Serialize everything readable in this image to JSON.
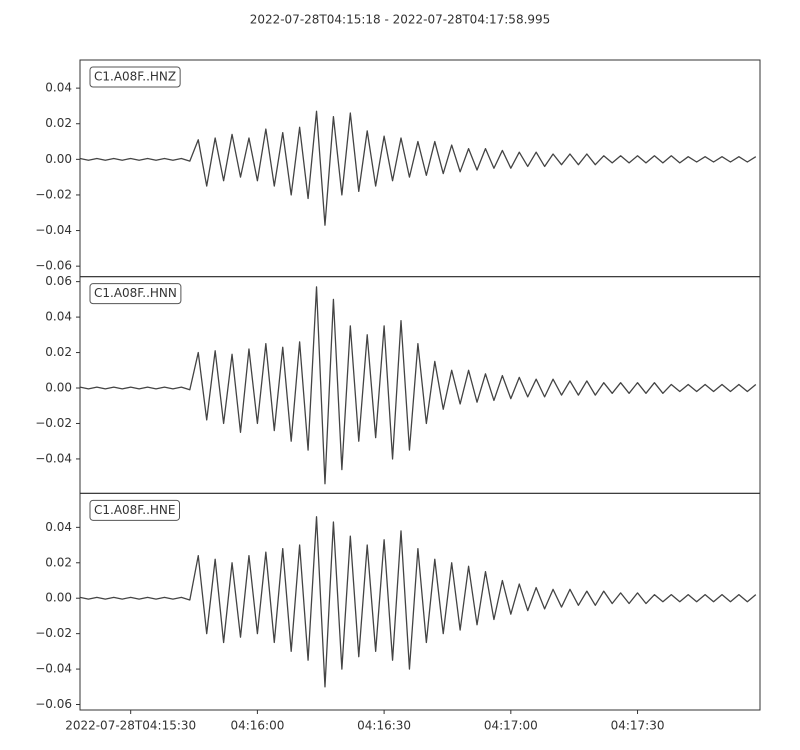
{
  "chart_data": [
    {
      "type": "line",
      "title": "2022-07-28T04:15:18  -  2022-07-28T04:17:58.995",
      "legend": "upper left",
      "x": [
        0,
        2,
        4,
        6,
        8,
        10,
        12,
        14,
        16,
        18,
        20,
        22,
        24,
        26,
        28,
        30,
        32,
        34,
        36,
        38,
        40,
        42,
        44,
        46,
        48,
        50,
        52,
        54,
        56,
        58,
        60,
        62,
        64,
        66,
        68,
        70,
        72,
        74,
        76,
        78,
        80,
        82,
        84,
        86,
        88,
        90,
        92,
        94,
        96,
        98,
        100,
        102,
        104,
        106,
        108,
        110,
        112,
        114,
        116,
        118,
        120,
        122,
        124,
        126,
        128,
        130,
        132,
        134,
        136,
        138,
        140,
        142,
        144,
        146,
        148,
        150,
        152,
        154,
        156,
        158,
        160
      ],
      "xlim": [
        0,
        160.995
      ],
      "ylim": [
        -0.0659,
        0.0558
      ],
      "yticks": [
        {
          "value": -0.06,
          "label": "−0.06"
        },
        {
          "value": -0.04,
          "label": "−0.04"
        },
        {
          "value": -0.02,
          "label": "−0.02"
        },
        {
          "value": 0,
          "label": "0.00"
        },
        0.02,
        0.04
      ],
      "series": [
        {
          "name": "C1.A08F..HNZ",
          "color": "#444444",
          "values": [
            0.0005,
            -0.0005,
            0.0005,
            -0.0005,
            0.0005,
            -0.0005,
            0.0005,
            -0.0005,
            0.0005,
            -0.0005,
            0.0005,
            -0.0005,
            0.0005,
            -0.001,
            0.011,
            -0.015,
            0.012,
            -0.012,
            0.014,
            -0.01,
            0.012,
            -0.012,
            0.017,
            -0.015,
            0.015,
            -0.02,
            0.018,
            -0.022,
            0.027,
            -0.037,
            0.024,
            -0.02,
            0.026,
            -0.018,
            0.016,
            -0.015,
            0.013,
            -0.012,
            0.012,
            -0.01,
            0.01,
            -0.009,
            0.01,
            -0.008,
            0.008,
            -0.007,
            0.006,
            -0.006,
            0.006,
            -0.005,
            0.005,
            -0.005,
            0.004,
            -0.004,
            0.004,
            -0.004,
            0.003,
            -0.003,
            0.003,
            -0.003,
            0.003,
            -0.003,
            0.002,
            -0.002,
            0.002,
            -0.002,
            0.002,
            -0.002,
            0.002,
            -0.002,
            0.002,
            -0.002,
            0.0015,
            -0.0015,
            0.0015,
            -0.0015,
            0.0015,
            -0.0015,
            0.0015,
            -0.0015,
            0.0015
          ]
        }
      ]
    },
    {
      "type": "line",
      "legend": "upper left",
      "x": [
        0,
        2,
        4,
        6,
        8,
        10,
        12,
        14,
        16,
        18,
        20,
        22,
        24,
        26,
        28,
        30,
        32,
        34,
        36,
        38,
        40,
        42,
        44,
        46,
        48,
        50,
        52,
        54,
        56,
        58,
        60,
        62,
        64,
        66,
        68,
        70,
        72,
        74,
        76,
        78,
        80,
        82,
        84,
        86,
        88,
        90,
        92,
        94,
        96,
        98,
        100,
        102,
        104,
        106,
        108,
        110,
        112,
        114,
        116,
        118,
        120,
        122,
        124,
        126,
        128,
        130,
        132,
        134,
        136,
        138,
        140,
        142,
        144,
        146,
        148,
        150,
        152,
        154,
        156,
        158,
        160
      ],
      "xlim": [
        0,
        160.995
      ],
      "ylim": [
        -0.0594,
        0.0628
      ],
      "yticks": [
        {
          "value": -0.04,
          "label": "−0.04"
        },
        {
          "value": -0.02,
          "label": "−0.02"
        },
        {
          "value": 0,
          "label": "0.00"
        },
        0.02,
        0.04,
        0.06
      ],
      "series": [
        {
          "name": "C1.A08F..HNN",
          "color": "#444444",
          "values": [
            0.0005,
            -0.0005,
            0.0005,
            -0.0005,
            0.0005,
            -0.0005,
            0.0005,
            -0.0005,
            0.0005,
            -0.0005,
            0.0005,
            -0.0005,
            0.0005,
            -0.001,
            0.02,
            -0.018,
            0.021,
            -0.02,
            0.019,
            -0.025,
            0.022,
            -0.02,
            0.025,
            -0.024,
            0.023,
            -0.03,
            0.026,
            -0.035,
            0.057,
            -0.054,
            0.05,
            -0.046,
            0.035,
            -0.03,
            0.03,
            -0.028,
            0.035,
            -0.04,
            0.038,
            -0.035,
            0.025,
            -0.02,
            0.015,
            -0.012,
            0.01,
            -0.009,
            0.01,
            -0.008,
            0.008,
            -0.007,
            0.007,
            -0.006,
            0.006,
            -0.005,
            0.005,
            -0.005,
            0.005,
            -0.004,
            0.004,
            -0.004,
            0.004,
            -0.004,
            0.003,
            -0.003,
            0.003,
            -0.003,
            0.003,
            -0.003,
            0.003,
            -0.003,
            0.002,
            -0.002,
            0.002,
            -0.002,
            0.002,
            -0.002,
            0.002,
            -0.002,
            0.002,
            -0.002,
            0.002
          ]
        }
      ]
    },
    {
      "type": "line",
      "legend": "upper left",
      "x": [
        0,
        2,
        4,
        6,
        8,
        10,
        12,
        14,
        16,
        18,
        20,
        22,
        24,
        26,
        28,
        30,
        32,
        34,
        36,
        38,
        40,
        42,
        44,
        46,
        48,
        50,
        52,
        54,
        56,
        58,
        60,
        62,
        64,
        66,
        68,
        70,
        72,
        74,
        76,
        78,
        80,
        82,
        84,
        86,
        88,
        90,
        92,
        94,
        96,
        98,
        100,
        102,
        104,
        106,
        108,
        110,
        112,
        114,
        116,
        118,
        120,
        122,
        124,
        126,
        128,
        130,
        132,
        134,
        136,
        138,
        140,
        142,
        144,
        146,
        148,
        150,
        152,
        154,
        156,
        158,
        160
      ],
      "xlim": [
        0,
        160.995
      ],
      "ylim": [
        -0.0631,
        0.0592
      ],
      "yticks": [
        {
          "value": -0.06,
          "label": "−0.06"
        },
        {
          "value": -0.04,
          "label": "−0.04"
        },
        {
          "value": -0.02,
          "label": "−0.02"
        },
        {
          "value": 0,
          "label": "0.00"
        },
        0.02,
        0.04
      ],
      "xticks": [
        {
          "value": 12,
          "label": "2022-07-28T04:15:30"
        },
        {
          "value": 42,
          "label": "04:16:00"
        },
        {
          "value": 72,
          "label": "04:16:30"
        },
        {
          "value": 102,
          "label": "04:17:00"
        },
        {
          "value": 132,
          "label": "04:17:30"
        }
      ],
      "series": [
        {
          "name": "C1.A08F..HNE",
          "color": "#444444",
          "values": [
            0.0005,
            -0.0005,
            0.0005,
            -0.0005,
            0.0005,
            -0.0005,
            0.0005,
            -0.0005,
            0.0005,
            -0.0005,
            0.0005,
            -0.0005,
            0.0005,
            -0.001,
            0.024,
            -0.02,
            0.022,
            -0.025,
            0.02,
            -0.022,
            0.024,
            -0.02,
            0.026,
            -0.025,
            0.028,
            -0.03,
            0.03,
            -0.035,
            0.046,
            -0.05,
            0.043,
            -0.04,
            0.035,
            -0.033,
            0.03,
            -0.03,
            0.033,
            -0.035,
            0.038,
            -0.04,
            0.028,
            -0.025,
            0.022,
            -0.02,
            0.02,
            -0.018,
            0.018,
            -0.015,
            0.015,
            -0.012,
            0.01,
            -0.009,
            0.008,
            -0.007,
            0.006,
            -0.006,
            0.005,
            -0.005,
            0.005,
            -0.004,
            0.004,
            -0.004,
            0.004,
            -0.003,
            0.003,
            -0.003,
            0.003,
            -0.003,
            0.002,
            -0.002,
            0.002,
            -0.002,
            0.002,
            -0.002,
            0.002,
            -0.002,
            0.002,
            -0.002,
            0.002,
            -0.002,
            0.002
          ]
        }
      ]
    }
  ]
}
